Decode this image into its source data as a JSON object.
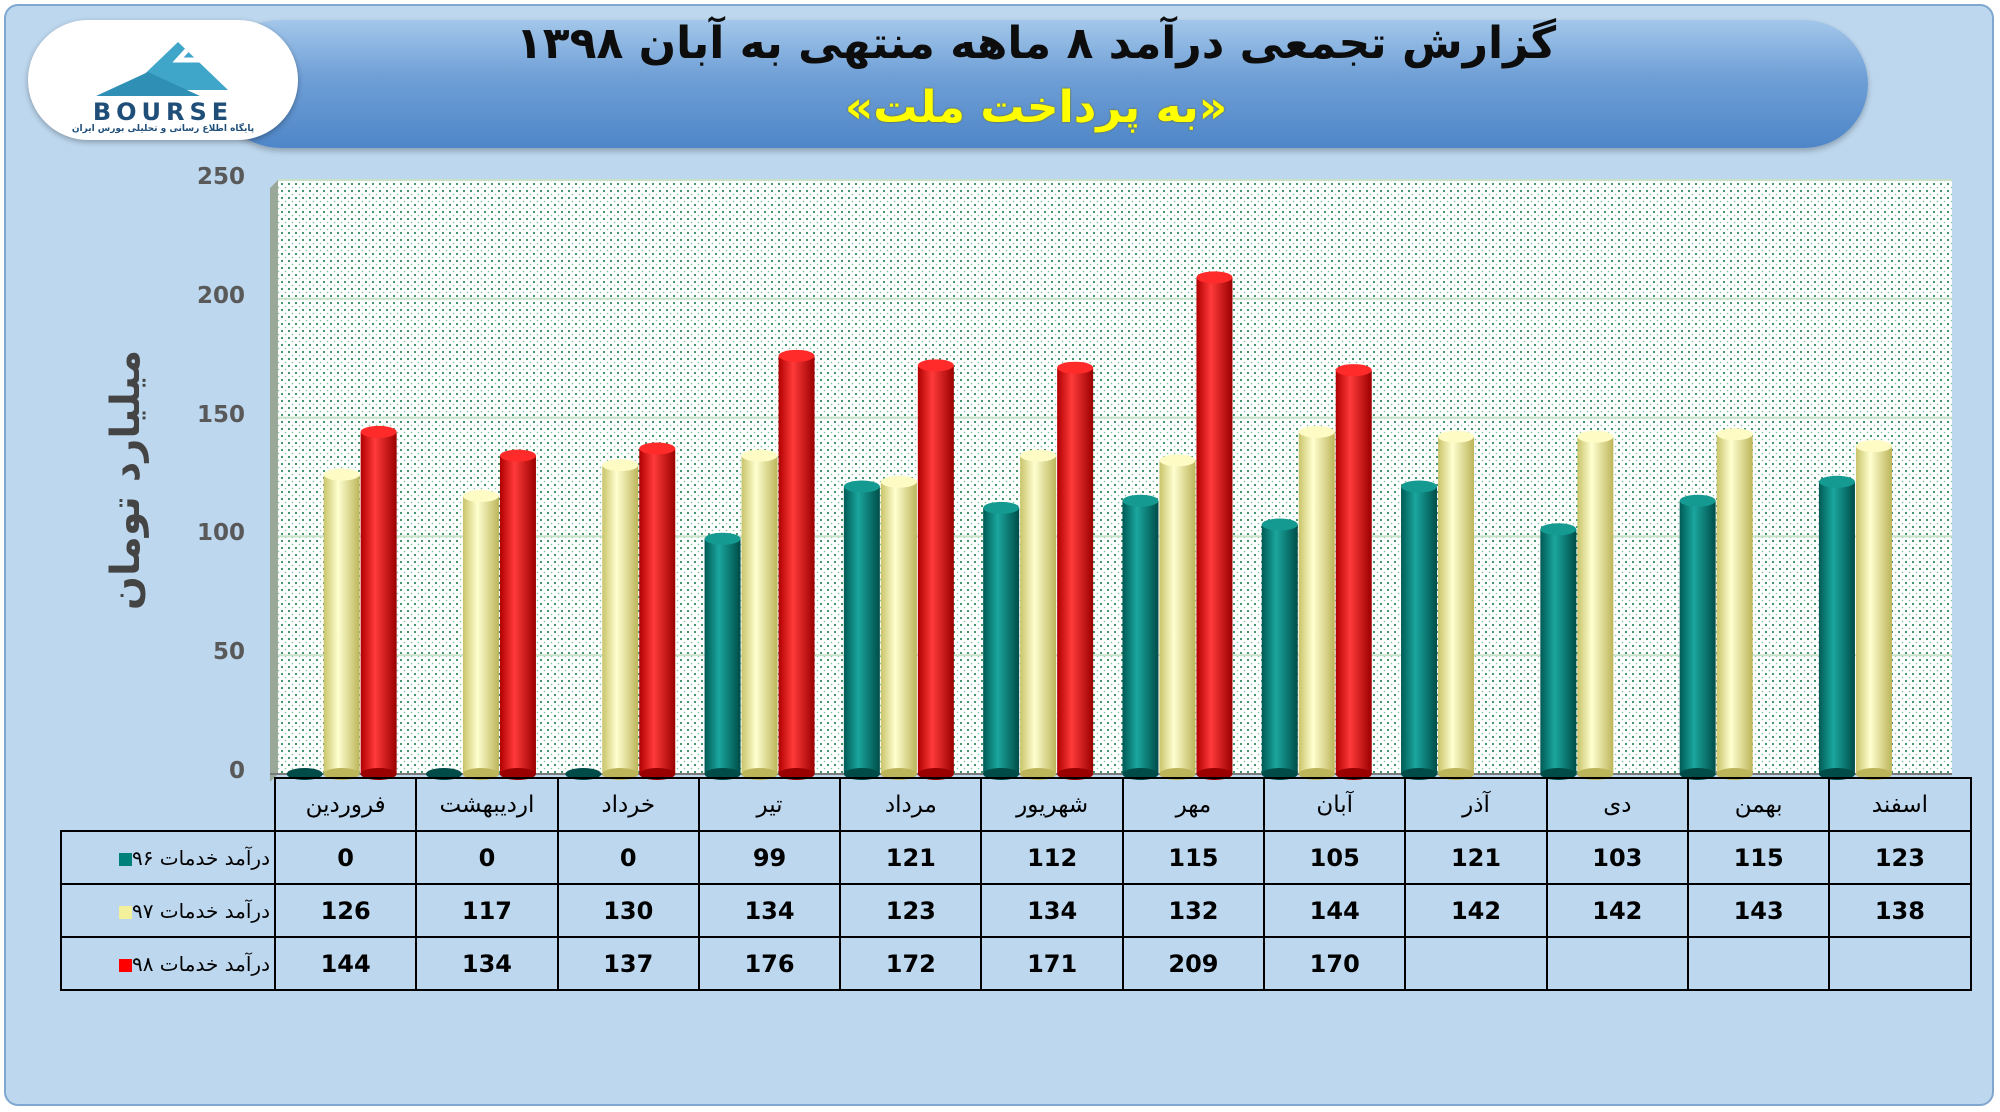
{
  "header": {
    "title": "گزارش تجمعی درآمد ۸ ماهه منتهی به آبان ۱۳۹۸",
    "subtitle": "«به پرداخت ملت»"
  },
  "logo": {
    "text": "BOURSE",
    "subtext": "پایگاه اطلاع رسانی و تحلیلی بورس ایران"
  },
  "chart_data": {
    "type": "bar",
    "ylabel": "میلیارد تومان",
    "ylim": [
      0,
      250
    ],
    "yticks": [
      0,
      50,
      100,
      150,
      200,
      250
    ],
    "grid": true,
    "categories": [
      "فروردین",
      "اردیبهشت",
      "خرداد",
      "تیر",
      "مرداد",
      "شهریور",
      "مهر",
      "آبان",
      "آذر",
      "دی",
      "بهمن",
      "اسفند"
    ],
    "series": [
      {
        "name": "درآمد خدمات ۹۶",
        "color": "#00807a",
        "values": [
          0,
          0,
          0,
          99,
          121,
          112,
          115,
          105,
          121,
          103,
          115,
          123
        ]
      },
      {
        "name": "درآمد خدمات ۹۷",
        "color": "#f3f09c",
        "values": [
          126,
          117,
          130,
          134,
          123,
          134,
          132,
          144,
          142,
          142,
          143,
          138
        ]
      },
      {
        "name": "درآمد خدمات ۹۸",
        "color": "#ff0000",
        "values": [
          144,
          134,
          137,
          176,
          172,
          171,
          209,
          170,
          null,
          null,
          null,
          null
        ]
      }
    ]
  }
}
